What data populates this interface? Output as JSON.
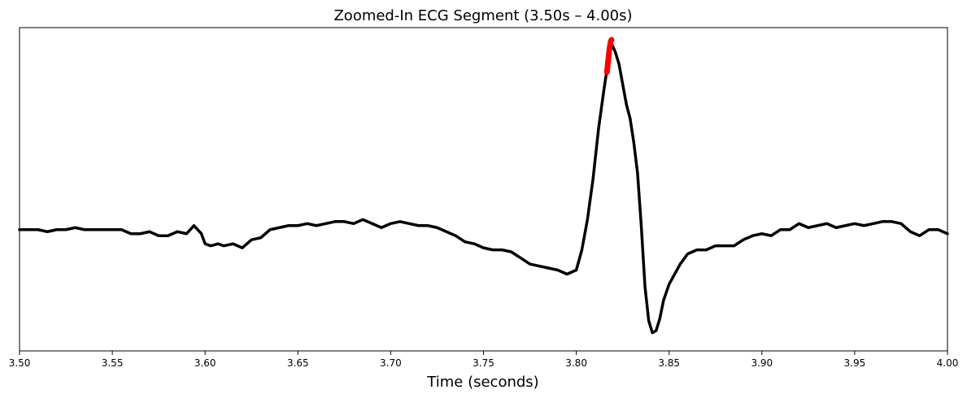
{
  "chart_data": {
    "type": "line",
    "title": "Zoomed-In ECG Segment (3.50s – 4.00s)",
    "xlabel": "Time (seconds)",
    "ylabel": "",
    "xlim": [
      3.5,
      4.0
    ],
    "ylim": [
      -0.6,
      1.0
    ],
    "x_ticks": [
      "3.50",
      "3.55",
      "3.60",
      "3.65",
      "3.70",
      "3.75",
      "3.80",
      "3.85",
      "3.90",
      "3.95",
      "4.00"
    ],
    "y_ticks_visible": false,
    "grid": false,
    "legend": "none",
    "series": [
      {
        "color": "#000000",
        "x": [
          3.5,
          3.505,
          3.51,
          3.515,
          3.52,
          3.525,
          3.53,
          3.535,
          3.54,
          3.545,
          3.55,
          3.555,
          3.56,
          3.565,
          3.57,
          3.575,
          3.58,
          3.585,
          3.59,
          3.594,
          3.598,
          3.6,
          3.603,
          3.607,
          3.61,
          3.615,
          3.62,
          3.625,
          3.63,
          3.635,
          3.64,
          3.645,
          3.65,
          3.655,
          3.66,
          3.665,
          3.67,
          3.675,
          3.68,
          3.685,
          3.69,
          3.695,
          3.7,
          3.705,
          3.71,
          3.715,
          3.72,
          3.725,
          3.73,
          3.735,
          3.74,
          3.745,
          3.75,
          3.755,
          3.76,
          3.765,
          3.77,
          3.775,
          3.78,
          3.785,
          3.79,
          3.795,
          3.8,
          3.803,
          3.806,
          3.809,
          3.812,
          3.815,
          3.817,
          3.819,
          3.821,
          3.823,
          3.825,
          3.827,
          3.829,
          3.831,
          3.833,
          3.835,
          3.837,
          3.839,
          3.841,
          3.843,
          3.845,
          3.847,
          3.85,
          3.853,
          3.856,
          3.86,
          3.865,
          3.87,
          3.875,
          3.88,
          3.885,
          3.89,
          3.895,
          3.9,
          3.905,
          3.91,
          3.915,
          3.92,
          3.925,
          3.93,
          3.935,
          3.94,
          3.945,
          3.95,
          3.955,
          3.96,
          3.965,
          3.97,
          3.975,
          3.98,
          3.985,
          3.99,
          3.995,
          4.0
        ],
        "y": [
          0.0,
          0.0,
          0.0,
          -0.01,
          0.0,
          0.0,
          0.01,
          0.0,
          0.0,
          0.0,
          0.0,
          0.0,
          -0.02,
          -0.02,
          -0.01,
          -0.03,
          -0.03,
          -0.01,
          -0.02,
          0.02,
          -0.02,
          -0.07,
          -0.08,
          -0.07,
          -0.08,
          -0.07,
          -0.09,
          -0.05,
          -0.04,
          0.0,
          0.01,
          0.02,
          0.02,
          0.03,
          0.02,
          0.03,
          0.04,
          0.04,
          0.03,
          0.05,
          0.03,
          0.01,
          0.03,
          0.04,
          0.03,
          0.02,
          0.02,
          0.01,
          -0.01,
          -0.03,
          -0.06,
          -0.07,
          -0.09,
          -0.1,
          -0.1,
          -0.11,
          -0.14,
          -0.17,
          -0.18,
          -0.19,
          -0.2,
          -0.22,
          -0.2,
          -0.1,
          0.05,
          0.25,
          0.5,
          0.7,
          0.82,
          0.92,
          0.88,
          0.82,
          0.72,
          0.62,
          0.55,
          0.43,
          0.28,
          0.02,
          -0.28,
          -0.45,
          -0.51,
          -0.5,
          -0.44,
          -0.35,
          -0.27,
          -0.22,
          -0.17,
          -0.12,
          -0.1,
          -0.1,
          -0.08,
          -0.08,
          -0.08,
          -0.05,
          -0.03,
          -0.02,
          -0.03,
          0.0,
          0.0,
          0.03,
          0.01,
          0.02,
          0.03,
          0.01,
          0.02,
          0.03,
          0.02,
          0.03,
          0.04,
          0.04,
          0.03,
          -0.01,
          -0.03,
          0.0,
          0.0,
          -0.02
        ]
      },
      {
        "color": "#ff0000",
        "x": [
          3.8165,
          3.8172,
          3.8178,
          3.8185,
          3.819
        ],
        "y": [
          0.78,
          0.84,
          0.89,
          0.93,
          0.94
        ]
      }
    ]
  }
}
